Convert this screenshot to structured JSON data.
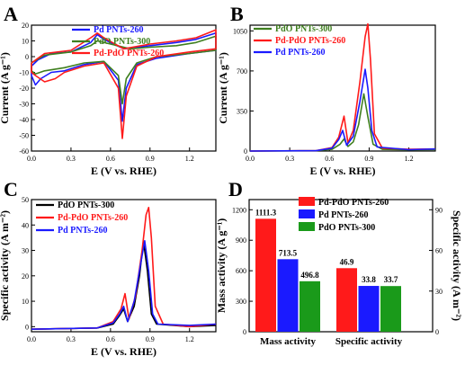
{
  "chart_data": [
    {
      "panel_label": "A",
      "type": "line",
      "xlabel": "E (V vs. RHE)",
      "ylabel": "Current (A g⁻¹)",
      "xlim": [
        0.0,
        1.4
      ],
      "ylim": [
        -60,
        20
      ],
      "xticks": [
        "0.0",
        "0.3",
        "0.6",
        "0.9",
        "1.2"
      ],
      "yticks": [
        "-60",
        "-50",
        "-40",
        "-30",
        "-20",
        "-10",
        "0",
        "10",
        "20"
      ],
      "legend_position": "top-center",
      "series": [
        {
          "name": "Pd PNTs-260",
          "color": "#1a1aff",
          "upper": [
            [
              0.0,
              -6
            ],
            [
              0.05,
              -2
            ],
            [
              0.15,
              2
            ],
            [
              0.3,
              3
            ],
            [
              0.45,
              9
            ],
            [
              0.5,
              14
            ],
            [
              0.55,
              11
            ],
            [
              0.7,
              5
            ],
            [
              0.9,
              7
            ],
            [
              1.1,
              9
            ],
            [
              1.25,
              11
            ],
            [
              1.4,
              15
            ]
          ],
          "lower": [
            [
              1.4,
              4
            ],
            [
              1.2,
              2
            ],
            [
              0.95,
              -1
            ],
            [
              0.8,
              -5
            ],
            [
              0.72,
              -20
            ],
            [
              0.69,
              -41
            ],
            [
              0.66,
              -15
            ],
            [
              0.55,
              -3
            ],
            [
              0.4,
              -5
            ],
            [
              0.25,
              -9
            ],
            [
              0.15,
              -10
            ],
            [
              0.07,
              -14
            ],
            [
              0.03,
              -18
            ],
            [
              0.0,
              -12
            ]
          ]
        },
        {
          "name": "PdO PNTs-300",
          "color": "#3f7f1f",
          "upper": [
            [
              0.0,
              -4
            ],
            [
              0.1,
              1
            ],
            [
              0.3,
              3
            ],
            [
              0.45,
              7
            ],
            [
              0.5,
              10
            ],
            [
              0.6,
              8
            ],
            [
              0.75,
              5
            ],
            [
              0.9,
              6
            ],
            [
              1.1,
              7
            ],
            [
              1.25,
              9
            ],
            [
              1.4,
              13
            ]
          ],
          "lower": [
            [
              1.4,
              4
            ],
            [
              1.2,
              2
            ],
            [
              0.95,
              0
            ],
            [
              0.8,
              -4
            ],
            [
              0.72,
              -14
            ],
            [
              0.69,
              -30
            ],
            [
              0.66,
              -12
            ],
            [
              0.55,
              -3
            ],
            [
              0.4,
              -4
            ],
            [
              0.25,
              -7
            ],
            [
              0.1,
              -9
            ],
            [
              0.03,
              -11
            ],
            [
              0.0,
              -9
            ]
          ]
        },
        {
          "name": "Pd-PdO PNTs-260",
          "color": "#ff1a1a",
          "upper": [
            [
              0.0,
              -4
            ],
            [
              0.1,
              2
            ],
            [
              0.3,
              4
            ],
            [
              0.45,
              12
            ],
            [
              0.5,
              15
            ],
            [
              0.55,
              12
            ],
            [
              0.7,
              5
            ],
            [
              0.9,
              8
            ],
            [
              1.1,
              10
            ],
            [
              1.25,
              12
            ],
            [
              1.4,
              17
            ]
          ],
          "lower": [
            [
              1.4,
              5
            ],
            [
              1.2,
              3
            ],
            [
              0.95,
              0
            ],
            [
              0.8,
              -6
            ],
            [
              0.72,
              -25
            ],
            [
              0.69,
              -52
            ],
            [
              0.66,
              -20
            ],
            [
              0.55,
              -4
            ],
            [
              0.4,
              -6
            ],
            [
              0.25,
              -10
            ],
            [
              0.18,
              -14
            ],
            [
              0.1,
              -16
            ],
            [
              0.03,
              -12
            ],
            [
              0.0,
              -10
            ]
          ]
        }
      ]
    },
    {
      "panel_label": "B",
      "type": "line",
      "xlabel": "E (V vs. RHE)",
      "ylabel": "Current (A g⁻¹)",
      "xlim": [
        0.0,
        1.4
      ],
      "ylim": [
        0,
        1100
      ],
      "xticks": [
        "0.0",
        "0.3",
        "0.6",
        "0.9",
        "1.2"
      ],
      "yticks": [
        "0",
        "350",
        "700",
        "1050"
      ],
      "legend_position": "top-left",
      "series": [
        {
          "name": "PdO PNTs-300",
          "color": "#3f7f1f",
          "points": [
            [
              0.0,
              0
            ],
            [
              0.5,
              3
            ],
            [
              0.62,
              15
            ],
            [
              0.68,
              60
            ],
            [
              0.71,
              105
            ],
            [
              0.74,
              40
            ],
            [
              0.78,
              80
            ],
            [
              0.82,
              230
            ],
            [
              0.86,
              500
            ],
            [
              0.89,
              300
            ],
            [
              0.93,
              60
            ],
            [
              1.0,
              15
            ],
            [
              1.2,
              10
            ],
            [
              1.4,
              12
            ]
          ]
        },
        {
          "name": "Pd-PdO PNTs-260",
          "color": "#ff1a1a",
          "points": [
            [
              0.0,
              0
            ],
            [
              0.5,
              4
            ],
            [
              0.62,
              30
            ],
            [
              0.67,
              120
            ],
            [
              0.71,
              305
            ],
            [
              0.74,
              70
            ],
            [
              0.78,
              180
            ],
            [
              0.83,
              600
            ],
            [
              0.87,
              1000
            ],
            [
              0.89,
              1111
            ],
            [
              0.91,
              800
            ],
            [
              0.94,
              150
            ],
            [
              1.0,
              25
            ],
            [
              1.2,
              15
            ],
            [
              1.4,
              18
            ]
          ]
        },
        {
          "name": "Pd PNTs-260",
          "color": "#1a1aff",
          "points": [
            [
              0.0,
              0
            ],
            [
              0.5,
              3
            ],
            [
              0.62,
              25
            ],
            [
              0.67,
              100
            ],
            [
              0.7,
              180
            ],
            [
              0.73,
              50
            ],
            [
              0.78,
              130
            ],
            [
              0.83,
              430
            ],
            [
              0.87,
              714
            ],
            [
              0.89,
              550
            ],
            [
              0.92,
              180
            ],
            [
              0.96,
              35
            ],
            [
              1.2,
              12
            ],
            [
              1.4,
              18
            ]
          ]
        }
      ]
    },
    {
      "panel_label": "C",
      "type": "line",
      "xlabel": "E (V vs. RHE)",
      "ylabel": "Specific activity (A m⁻²)",
      "xlim": [
        0.0,
        1.4
      ],
      "ylim": [
        -2,
        50
      ],
      "xticks": [
        "0.0",
        "0.3",
        "0.6",
        "0.9",
        "1.2"
      ],
      "yticks": [
        "0",
        "10",
        "20",
        "30",
        "40",
        "50"
      ],
      "legend_position": "top-left",
      "series": [
        {
          "name": "PdO PNTs-300",
          "color": "#000000",
          "points": [
            [
              0.0,
              -1
            ],
            [
              0.5,
              -0.5
            ],
            [
              0.62,
              1
            ],
            [
              0.67,
              4.5
            ],
            [
              0.7,
              7
            ],
            [
              0.73,
              2
            ],
            [
              0.78,
              8
            ],
            [
              0.82,
              20
            ],
            [
              0.85,
              33.7
            ],
            [
              0.88,
              22
            ],
            [
              0.91,
              5
            ],
            [
              0.95,
              1
            ],
            [
              1.2,
              0
            ],
            [
              1.4,
              0.5
            ]
          ]
        },
        {
          "name": "Pd-PdO PNTs-260",
          "color": "#ff1a1a",
          "points": [
            [
              0.0,
              -1
            ],
            [
              0.5,
              -0.5
            ],
            [
              0.62,
              2
            ],
            [
              0.68,
              7
            ],
            [
              0.71,
              13
            ],
            [
              0.74,
              3
            ],
            [
              0.79,
              12
            ],
            [
              0.84,
              30
            ],
            [
              0.87,
              44
            ],
            [
              0.89,
              46.9
            ],
            [
              0.91,
              35
            ],
            [
              0.94,
              8
            ],
            [
              1.0,
              1
            ],
            [
              1.2,
              0
            ],
            [
              1.4,
              1
            ]
          ]
        },
        {
          "name": "Pd PNTs-260",
          "color": "#1a1aff",
          "points": [
            [
              0.0,
              -1
            ],
            [
              0.5,
              -0.5
            ],
            [
              0.62,
              1.5
            ],
            [
              0.67,
              5
            ],
            [
              0.7,
              8
            ],
            [
              0.73,
              2
            ],
            [
              0.78,
              10
            ],
            [
              0.83,
              25
            ],
            [
              0.86,
              33.8
            ],
            [
              0.89,
              22
            ],
            [
              0.92,
              5
            ],
            [
              0.96,
              1
            ],
            [
              1.2,
              0.5
            ],
            [
              1.4,
              1
            ]
          ]
        }
      ]
    },
    {
      "panel_label": "D",
      "type": "bar",
      "categories": [
        "Mass activity",
        "Specific activity"
      ],
      "ylabel": "Mass activity (A g⁻¹)",
      "y2label": "Specific activity (A m⁻²)",
      "ylim": [
        0,
        1300
      ],
      "y2lim": [
        0,
        97.5
      ],
      "yticks": [
        "0",
        "300",
        "600",
        "900",
        "1200"
      ],
      "y2ticks": [
        "0",
        "30",
        "60",
        "90"
      ],
      "legend_position": "top-right",
      "series": [
        {
          "name": "Pd-PdO PNTs-260",
          "color": "#ff1a1a",
          "values": [
            1111.3,
            46.9
          ],
          "labels": [
            "1111.3",
            "46.9"
          ]
        },
        {
          "name": "Pd PNTs-260",
          "color": "#1a1aff",
          "values": [
            713.5,
            33.8
          ],
          "labels": [
            "713.5",
            "33.8"
          ]
        },
        {
          "name": "PdO PNTs-300",
          "color": "#1a9a1a",
          "values": [
            496.8,
            33.7
          ],
          "labels": [
            "496.8",
            "33.7"
          ]
        }
      ]
    }
  ]
}
